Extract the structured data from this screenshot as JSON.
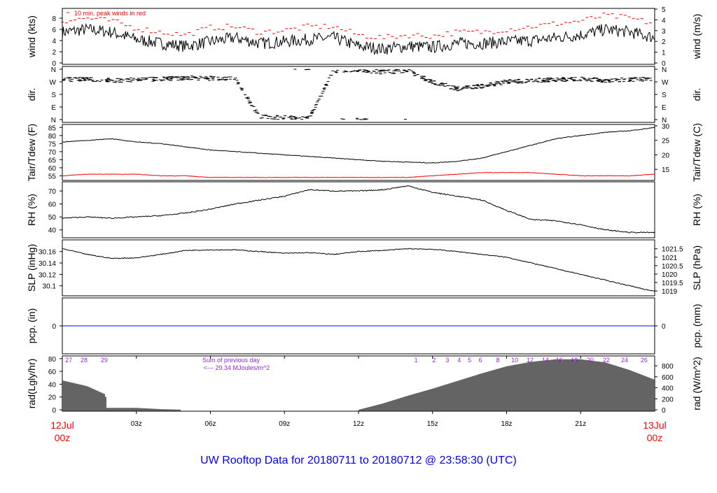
{
  "chart_data": [
    {
      "type": "line",
      "id": "wind",
      "ylabel": "wind (kts)",
      "ylabel_right": "wind (m/s)",
      "ylim": [
        0,
        9.5
      ],
      "yticks": [
        0,
        2,
        4,
        6,
        8
      ],
      "yticks_right": [
        0,
        1,
        2,
        3,
        4,
        5
      ],
      "annotation": "10 min. peak winds in red",
      "colors": {
        "wind": "#000000",
        "peak": "#ff0000"
      },
      "x_hours": [
        0,
        1,
        2,
        3,
        4,
        5,
        6,
        7,
        8,
        9,
        10,
        11,
        12,
        13,
        14,
        15,
        16,
        17,
        18,
        19,
        20,
        21,
        22,
        23,
        24
      ],
      "values": [
        5.5,
        6,
        5.5,
        4.2,
        3.5,
        3,
        3.8,
        4.5,
        3.5,
        3.8,
        4.2,
        4.5,
        3,
        2.5,
        3,
        2.8,
        3.5,
        3.5,
        3.8,
        4,
        4.5,
        5,
        6,
        5.5,
        4.5
      ],
      "peak": [
        7.5,
        8,
        7.5,
        6.2,
        5.5,
        5,
        6.3,
        6.5,
        5.5,
        5.8,
        6.5,
        6.5,
        5,
        4.5,
        5,
        4.8,
        5.5,
        5.5,
        6,
        6.5,
        7,
        7.5,
        8.5,
        8,
        7
      ]
    },
    {
      "type": "scatter",
      "id": "dir",
      "ylabel": "dir.",
      "ylabel_right": "dir.",
      "yticks": [
        "N",
        "W",
        "S",
        "E",
        "N"
      ],
      "x_hours": [
        0,
        1,
        2,
        3,
        4,
        5,
        6,
        7,
        8,
        9,
        10,
        11,
        12,
        13,
        14,
        15,
        16,
        17,
        18,
        19,
        20,
        21,
        22,
        23,
        24
      ],
      "values": [
        285,
        290,
        280,
        285,
        290,
        300,
        295,
        290,
        20,
        15,
        10,
        350,
        355,
        340,
        350,
        270,
        220,
        240,
        270,
        280,
        285,
        290,
        280,
        285,
        290
      ]
    },
    {
      "type": "line",
      "id": "temp",
      "ylabel": "Tair/Tdew (F)",
      "ylabel_right": "Tair/Tdew (C)",
      "ylim": [
        53,
        86
      ],
      "yticks": [
        55,
        60,
        65,
        70,
        75,
        80,
        85
      ],
      "yticks_right": [
        15,
        20,
        25,
        30
      ],
      "colors": {
        "tair": "#000000",
        "tdew": "#ff0000"
      },
      "x_hours": [
        0,
        1,
        2,
        3,
        4,
        5,
        6,
        7,
        8,
        9,
        10,
        11,
        12,
        13,
        14,
        15,
        16,
        17,
        18,
        19,
        20,
        21,
        22,
        23,
        24
      ],
      "series": [
        {
          "values": [
            76,
            77,
            78,
            76,
            75,
            73,
            71,
            70,
            69,
            68,
            67,
            66,
            65,
            64,
            63.5,
            63,
            64,
            66,
            70,
            74,
            78,
            80,
            82,
            83,
            85
          ]
        },
        {
          "values": [
            55,
            56,
            56,
            56,
            55,
            55,
            54,
            54,
            54,
            54,
            54,
            54,
            54,
            54,
            54,
            55,
            56,
            57,
            57,
            57,
            56,
            55,
            55,
            55,
            56
          ]
        }
      ]
    },
    {
      "type": "line",
      "id": "rh",
      "ylabel": "RH (%)",
      "ylabel_right": "RH (%)",
      "ylim": [
        35,
        76
      ],
      "yticks": [
        40,
        50,
        60,
        70
      ],
      "x_hours": [
        0,
        1,
        2,
        3,
        4,
        5,
        6,
        7,
        8,
        9,
        10,
        11,
        12,
        13,
        14,
        15,
        16,
        17,
        18,
        19,
        20,
        21,
        22,
        23,
        24
      ],
      "values": [
        49,
        50,
        49,
        50,
        51,
        53,
        56,
        60,
        63,
        66,
        71,
        70,
        70,
        71,
        74,
        69,
        66,
        63,
        55,
        48,
        47,
        44,
        40,
        38,
        38
      ]
    },
    {
      "type": "line",
      "id": "slp",
      "ylabel": "SLP (inHg)",
      "ylabel_right": "SLP (hPa)",
      "ylim": [
        30.085,
        30.178
      ],
      "yticks": [
        30.1,
        30.12,
        30.14,
        30.16
      ],
      "yticks_right": [
        1019,
        1019.5,
        1020,
        1020.5,
        1021,
        1021.5
      ],
      "x_hours": [
        0,
        1,
        2,
        3,
        4,
        5,
        6,
        7,
        8,
        9,
        10,
        11,
        12,
        13,
        14,
        15,
        16,
        17,
        18,
        19,
        20,
        21,
        22,
        23,
        24
      ],
      "values": [
        30.165,
        30.155,
        30.148,
        30.149,
        30.155,
        30.162,
        30.163,
        30.163,
        30.16,
        30.157,
        30.158,
        30.155,
        30.16,
        30.162,
        30.165,
        30.164,
        30.16,
        30.155,
        30.15,
        30.14,
        30.13,
        30.12,
        30.11,
        30.1,
        30.09
      ]
    },
    {
      "type": "line",
      "id": "pcp",
      "ylabel": "pcp. (in)",
      "ylabel_right": "pcp. (mm)",
      "yticks": [
        0
      ],
      "yticks_right": [
        0
      ],
      "colors": {
        "line": "#0000ff"
      },
      "x_hours": [
        0,
        24
      ],
      "values": [
        0,
        0
      ]
    },
    {
      "type": "area",
      "id": "rad",
      "ylabel": "rad(Lgly/hr)",
      "ylabel_right": "rad (W/m^2)",
      "ylim": [
        0,
        82
      ],
      "yticks": [
        0,
        20,
        40,
        60,
        80
      ],
      "yticks_right": [
        0,
        200,
        400,
        600,
        800
      ],
      "x_hours": [
        0,
        1,
        1.75,
        1.8,
        3,
        4,
        5,
        12,
        12.8,
        13,
        14,
        15,
        16,
        17,
        18,
        19,
        20,
        21,
        22,
        23,
        24
      ],
      "values": [
        46,
        37,
        24,
        3,
        3,
        1,
        0,
        0,
        8,
        10,
        22,
        33,
        45,
        57,
        68,
        75,
        79,
        79,
        74,
        62,
        47
      ],
      "annotation": [
        "Sum of previous day",
        "<--- 29.34 MJoules/m^2"
      ],
      "cumulative_labels": [
        {
          "label": "27",
          "hour": 0.26
        },
        {
          "label": "28",
          "hour": 0.88
        },
        {
          "label": "29",
          "hour": 1.7
        },
        {
          "label": "1",
          "hour": 14.33
        },
        {
          "label": "2",
          "hour": 15.06
        },
        {
          "label": "3",
          "hour": 15.6
        },
        {
          "label": "4",
          "hour": 16.08
        },
        {
          "label": "5",
          "hour": 16.5
        },
        {
          "label": "6",
          "hour": 16.94
        },
        {
          "label": "8",
          "hour": 17.65
        },
        {
          "label": "10",
          "hour": 18.33
        },
        {
          "label": "12",
          "hour": 18.95
        },
        {
          "label": "14",
          "hour": 19.57
        },
        {
          "label": "16",
          "hour": 20.14
        },
        {
          "label": "18",
          "hour": 20.74
        },
        {
          "label": "20",
          "hour": 21.39
        },
        {
          "label": "22",
          "hour": 22.04
        },
        {
          "label": "24",
          "hour": 22.78
        },
        {
          "label": "26",
          "hour": 23.57
        }
      ],
      "colors": {
        "labels": "#a020f0"
      }
    }
  ],
  "xaxis": {
    "ticks": [
      "03z",
      "06z",
      "09z",
      "12z",
      "15z",
      "18z",
      "21z"
    ],
    "tick_hours": [
      3,
      6,
      9,
      12,
      15,
      18,
      21
    ],
    "start_date": "12Jul",
    "start_time": "00z",
    "end_date": "13Jul",
    "end_time": "00z",
    "date_color": "#ff0000"
  },
  "title": "UW Rooftop Data for 20180711  to  20180712 @ 23:58:30  (UTC)",
  "title_color": "#0000ff"
}
